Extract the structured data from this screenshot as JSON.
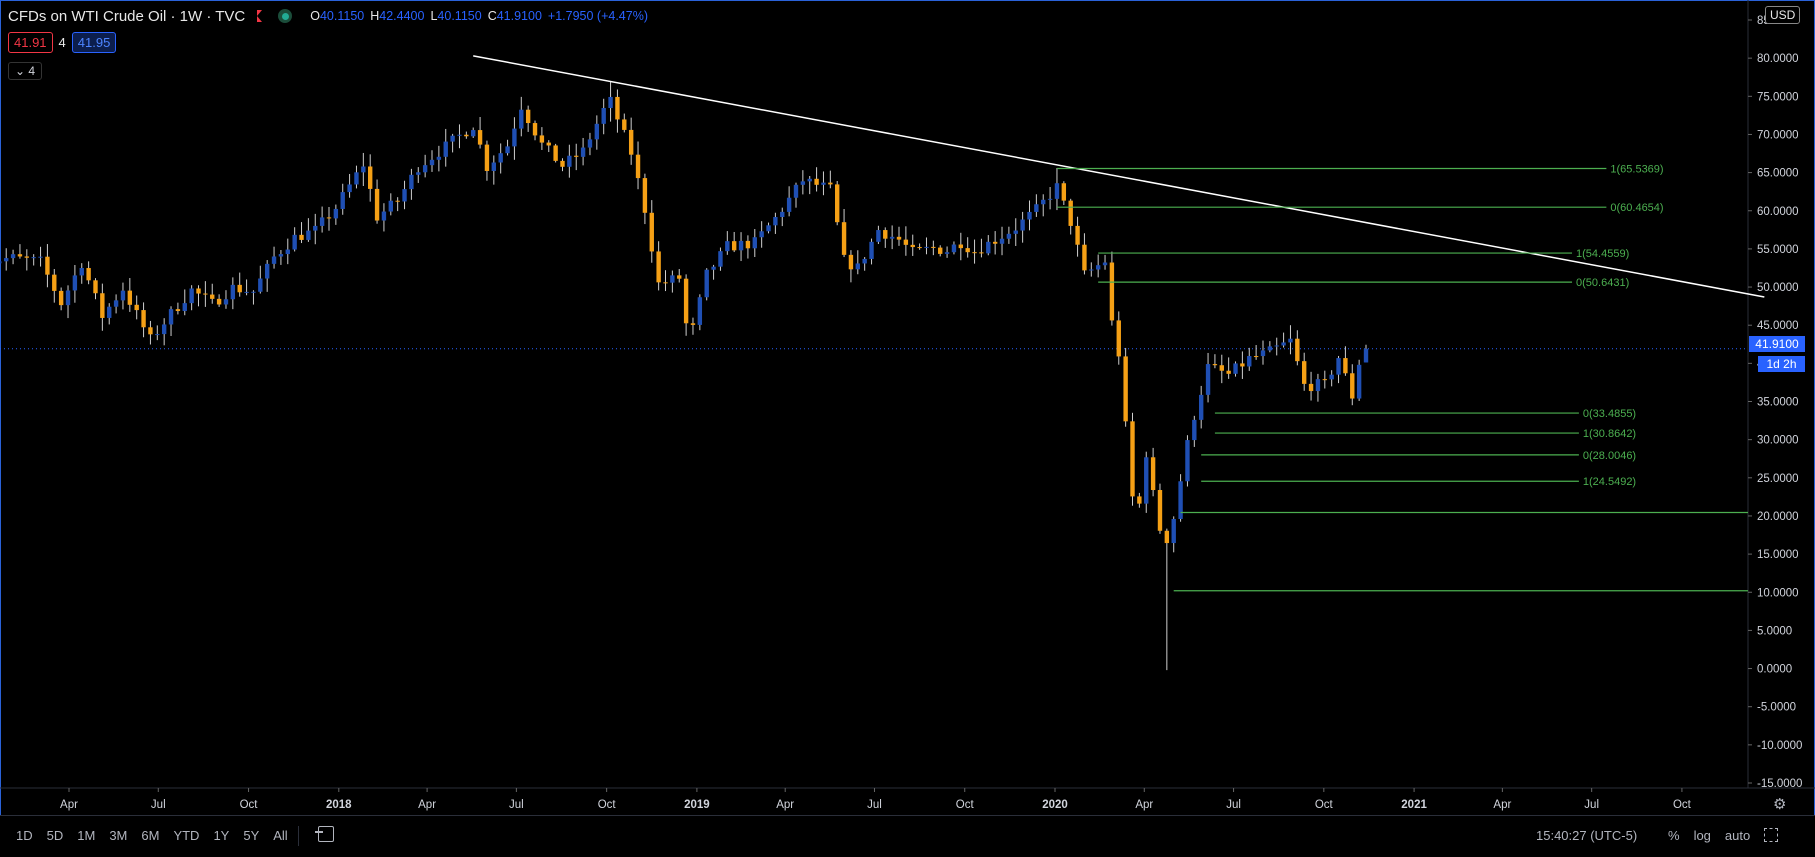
{
  "header": {
    "title": "CFDs on WTI Crude Oil · 1W · TVC",
    "ohlc": {
      "o_label": "O",
      "o": "40.1150",
      "h_label": "H",
      "h": "42.4400",
      "l_label": "L",
      "l": "40.1150",
      "c_label": "C",
      "c": "41.9100",
      "change": "+1.7950 (+4.47%)"
    },
    "sell_price": "41.91",
    "spread": "4",
    "buy_price": "41.95",
    "collapse_label": "4"
  },
  "currency": "USD",
  "last_price": "41.9100",
  "countdown": "1d 2h",
  "bottom_bar": {
    "ranges": [
      "1D",
      "5D",
      "1M",
      "3M",
      "6M",
      "YTD",
      "1Y",
      "5Y",
      "All"
    ],
    "clock": "15:40:27 (UTC-5)",
    "options": [
      "%",
      "log",
      "auto"
    ]
  },
  "colors": {
    "up": "#1f4fb4",
    "down": "#f5a015",
    "fib": "#4caf50",
    "trend": "#ffffff",
    "axis_text": "#d1d4dc"
  },
  "chart_data": {
    "type": "candlestick",
    "title": "CFDs on WTI Crude Oil",
    "ylim": [
      -17,
      86
    ],
    "y_ticks": [
      "-15.0000",
      "-10.0000",
      "-5.0000",
      "0.0000",
      "5.0000",
      "10.0000",
      "15.0000",
      "20.0000",
      "25.0000",
      "30.0000",
      "35.0000",
      "40.0000",
      "45.0000",
      "50.0000",
      "55.0000",
      "60.0000",
      "65.0000",
      "70.0000",
      "75.0000",
      "80.0000",
      "85.0000"
    ],
    "x_ticks": [
      {
        "label": "Apr",
        "date": "2017-04"
      },
      {
        "label": "Jul",
        "date": "2017-07"
      },
      {
        "label": "Oct",
        "date": "2017-10"
      },
      {
        "label": "2018",
        "date": "2018-01"
      },
      {
        "label": "Apr",
        "date": "2018-04"
      },
      {
        "label": "Jul",
        "date": "2018-07"
      },
      {
        "label": "Oct",
        "date": "2018-10"
      },
      {
        "label": "2019",
        "date": "2019-01"
      },
      {
        "label": "Apr",
        "date": "2019-04"
      },
      {
        "label": "Jul",
        "date": "2019-07"
      },
      {
        "label": "Oct",
        "date": "2019-10"
      },
      {
        "label": "2020",
        "date": "2020-01"
      },
      {
        "label": "Apr",
        "date": "2020-04"
      },
      {
        "label": "Jul",
        "date": "2020-07"
      },
      {
        "label": "Oct",
        "date": "2020-10"
      },
      {
        "label": "2021",
        "date": "2021-01"
      },
      {
        "label": "Apr",
        "date": "2021-04"
      },
      {
        "label": "Jul",
        "date": "2021-07"
      },
      {
        "label": "Oct",
        "date": "2021-10"
      }
    ],
    "close_path": [
      [
        "2017-01-06",
        53.5
      ],
      [
        "2017-02-03",
        53.8
      ],
      [
        "2017-03-03",
        53.3
      ],
      [
        "2017-03-24",
        47.9
      ],
      [
        "2017-04-14",
        53.2
      ],
      [
        "2017-05-05",
        46.2
      ],
      [
        "2017-05-26",
        49.8
      ],
      [
        "2017-06-16",
        44.7
      ],
      [
        "2017-06-23",
        43.1
      ],
      [
        "2017-07-14",
        46.5
      ],
      [
        "2017-08-04",
        49.6
      ],
      [
        "2017-08-25",
        47.8
      ],
      [
        "2017-09-15",
        49.9
      ],
      [
        "2017-10-06",
        49.4
      ],
      [
        "2017-10-27",
        53.9
      ],
      [
        "2017-11-17",
        56.5
      ],
      [
        "2017-12-08",
        57.4
      ],
      [
        "2017-12-29",
        60.4
      ],
      [
        "2018-01-26",
        66.1
      ],
      [
        "2018-02-09",
        59.2
      ],
      [
        "2018-03-02",
        61.3
      ],
      [
        "2018-03-23",
        65.8
      ],
      [
        "2018-04-20",
        68.4
      ],
      [
        "2018-05-18",
        71.2
      ],
      [
        "2018-06-01",
        65.8
      ],
      [
        "2018-06-22",
        68.6
      ],
      [
        "2018-07-06",
        73.8
      ],
      [
        "2018-07-27",
        68.7
      ],
      [
        "2018-08-17",
        65.9
      ],
      [
        "2018-09-07",
        67.8
      ],
      [
        "2018-09-28",
        73.2
      ],
      [
        "2018-10-05",
        74.3
      ],
      [
        "2018-10-26",
        67.6
      ],
      [
        "2018-11-09",
        60.2
      ],
      [
        "2018-11-23",
        50.4
      ],
      [
        "2018-12-14",
        51.2
      ],
      [
        "2018-12-24",
        42.5
      ],
      [
        "2019-01-11",
        51.6
      ],
      [
        "2019-02-01",
        55.3
      ],
      [
        "2019-03-01",
        55.8
      ],
      [
        "2019-03-22",
        59.0
      ],
      [
        "2019-04-19",
        64.0
      ],
      [
        "2019-05-17",
        62.8
      ],
      [
        "2019-05-31",
        53.5
      ],
      [
        "2019-06-14",
        52.5
      ],
      [
        "2019-07-05",
        57.5
      ],
      [
        "2019-07-26",
        56.2
      ],
      [
        "2019-08-09",
        54.5
      ],
      [
        "2019-08-30",
        55.1
      ],
      [
        "2019-09-13",
        54.8
      ],
      [
        "2019-09-27",
        55.9
      ],
      [
        "2019-10-11",
        54.7
      ],
      [
        "2019-11-01",
        56.2
      ],
      [
        "2019-11-22",
        57.8
      ],
      [
        "2019-12-13",
        60.1
      ],
      [
        "2020-01-03",
        63.1
      ],
      [
        "2020-01-17",
        58.5
      ],
      [
        "2020-01-31",
        51.6
      ],
      [
        "2020-02-21",
        53.4
      ],
      [
        "2020-02-28",
        45.3
      ],
      [
        "2020-03-06",
        41.3
      ],
      [
        "2020-03-13",
        31.7
      ],
      [
        "2020-03-20",
        22.4
      ],
      [
        "2020-03-27",
        21.5
      ],
      [
        "2020-04-03",
        28.3
      ],
      [
        "2020-04-10",
        22.8
      ],
      [
        "2020-04-17",
        18.3
      ],
      [
        "2020-04-24",
        17.0
      ],
      [
        "2020-05-01",
        19.8
      ],
      [
        "2020-05-08",
        24.7
      ],
      [
        "2020-05-15",
        29.4
      ],
      [
        "2020-05-22",
        33.2
      ],
      [
        "2020-06-05",
        39.5
      ],
      [
        "2020-06-26",
        38.5
      ],
      [
        "2020-07-17",
        40.6
      ],
      [
        "2020-08-07",
        41.5
      ],
      [
        "2020-08-28",
        42.9
      ],
      [
        "2020-09-11",
        37.1
      ],
      [
        "2020-10-02",
        37.2
      ],
      [
        "2020-10-16",
        40.8
      ],
      [
        "2020-10-30",
        35.7
      ],
      [
        "2020-11-06",
        40.1
      ],
      [
        "2020-11-13",
        41.91
      ]
    ],
    "notable_extremes": [
      {
        "date": "2018-10-05",
        "high": 76.9
      },
      {
        "date": "2018-12-24",
        "low": 42.4
      },
      {
        "date": "2020-01-03",
        "high": 65.6
      },
      {
        "date": "2020-04-24",
        "low": -0.2
      },
      {
        "date": "2020-11-13",
        "high": 42.44
      }
    ],
    "annotations": {
      "trend_line": {
        "from": [
          "2018-05-18",
          80.3
        ],
        "to": [
          "2021-12-24",
          48.7
        ]
      },
      "fib_levels": [
        {
          "label": "1(65.5369)",
          "value": 65.5369,
          "from": "2020-01-03"
        },
        {
          "label": "0(60.4654)",
          "value": 60.4654,
          "from": "2020-01-03"
        },
        {
          "label": "1(54.4559)",
          "value": 54.4559,
          "from": "2020-02-14"
        },
        {
          "label": "0(50.6431)",
          "value": 50.6431,
          "from": "2020-02-14"
        },
        {
          "label": "0(33.4855)",
          "value": 33.4855,
          "from": "2020-06-12"
        },
        {
          "label": "1(30.8642)",
          "value": 30.8642,
          "from": "2020-06-12"
        },
        {
          "label": "0(28.0046)",
          "value": 28.0046,
          "from": "2020-05-29"
        },
        {
          "label": "1(24.5492)",
          "value": 24.5492,
          "from": "2020-05-29"
        },
        {
          "label": "",
          "value": 20.45,
          "from": "2020-05-08"
        },
        {
          "label": "",
          "value": 10.2,
          "from": "2020-05-01"
        }
      ]
    },
    "grid": false
  }
}
